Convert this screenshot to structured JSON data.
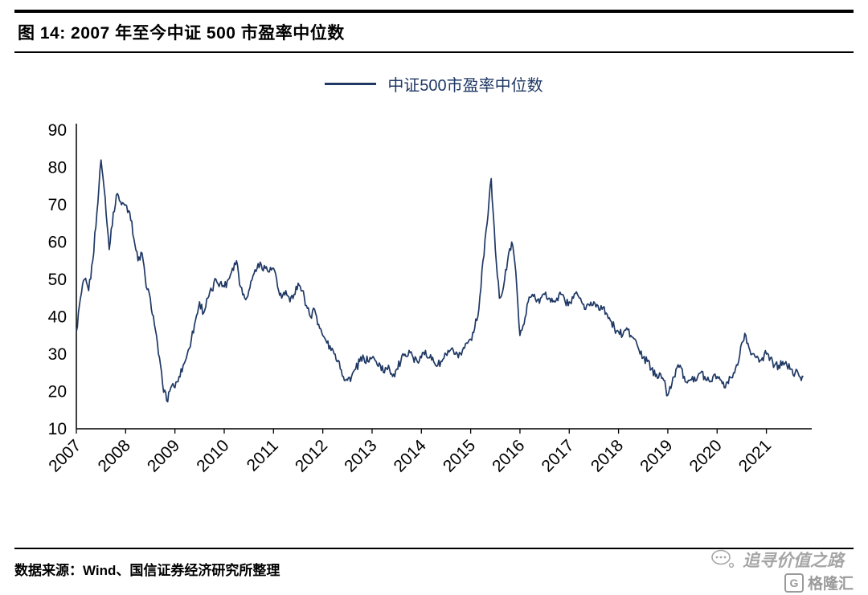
{
  "figure": {
    "title": "图 14: 2007 年至今中证 500 市盈率中位数"
  },
  "source": {
    "text": "数据来源：Wind、国信证券经济研究所整理"
  },
  "watermark": {
    "text": "追寻价值之路"
  },
  "logo": {
    "mark": "G",
    "text": "格隆汇"
  },
  "colors": {
    "line": "#1F3864",
    "axis": "#000000",
    "text": "#000000",
    "watermark": "#A6A6A6"
  },
  "chart_data": {
    "type": "line",
    "title": "图 14: 2007 年至今中证 500 市盈率中位数",
    "legend_label": "中证500市盈率中位数",
    "xlabel": "",
    "ylabel": "",
    "ylim": [
      10,
      90
    ],
    "yticks": [
      10,
      20,
      30,
      40,
      50,
      60,
      70,
      80,
      90
    ],
    "xlim": [
      2007,
      2021.92
    ],
    "xticks": [
      2007,
      2008,
      2009,
      2010,
      2011,
      2012,
      2013,
      2014,
      2015,
      2016,
      2017,
      2018,
      2019,
      2020,
      2021
    ],
    "x_start_year": 2007,
    "x_step": "monthly",
    "grid": false,
    "legend_position": "top-center",
    "series": [
      {
        "name": "中证500市盈率中位数",
        "color": "#1F3864",
        "values": [
          36,
          45,
          50,
          47,
          55,
          68,
          82,
          72,
          58,
          68,
          73,
          70,
          70,
          68,
          61,
          55,
          57,
          48,
          45,
          38,
          30,
          22,
          17.5,
          21,
          21,
          24,
          27,
          30,
          34,
          39,
          44,
          41,
          45,
          47,
          50,
          49,
          48,
          50,
          53,
          55,
          48,
          45,
          47,
          51,
          53,
          54,
          53,
          52,
          53,
          48,
          45,
          47,
          44,
          46,
          49,
          47,
          43,
          40,
          42,
          38,
          35,
          33,
          31,
          30,
          28,
          24,
          23,
          24,
          26,
          28,
          29,
          28,
          29,
          28,
          27,
          25,
          27,
          24,
          26,
          28,
          30,
          31,
          29,
          28,
          29,
          31,
          29,
          28,
          27,
          28,
          30,
          31,
          30,
          29,
          31,
          33,
          34,
          37,
          42,
          55,
          65,
          77,
          58,
          45,
          48,
          55,
          60,
          52,
          35,
          38,
          44,
          46,
          44,
          45,
          46,
          45,
          44,
          45,
          46,
          44,
          44,
          45,
          46,
          44,
          42,
          43,
          44,
          43,
          42,
          41,
          39,
          37,
          36,
          35,
          37,
          35,
          34,
          31,
          29,
          28,
          26,
          24,
          25,
          23,
          19,
          22,
          26,
          27,
          24,
          23,
          24,
          23,
          25,
          24,
          23,
          24,
          24,
          23,
          21,
          24,
          25,
          27,
          33,
          35,
          31,
          30,
          29,
          29,
          30,
          29,
          27,
          27,
          28,
          27,
          26,
          25,
          24,
          24
        ]
      }
    ]
  }
}
